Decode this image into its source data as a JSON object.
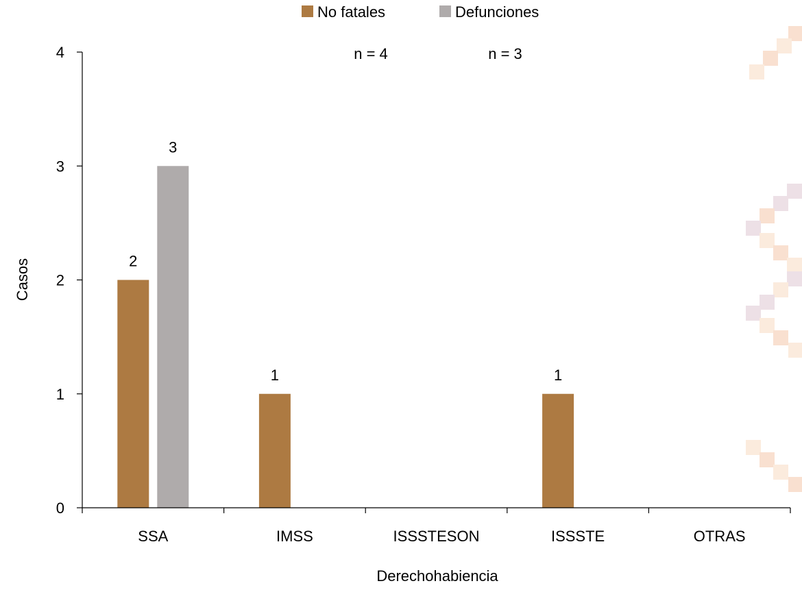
{
  "chart_data": {
    "type": "bar",
    "categories": [
      "SSA",
      "IMSS",
      "ISSSTESON",
      "ISSSTE",
      "OTRAS"
    ],
    "series": [
      {
        "name": "No fatales",
        "color": "#AD7A42",
        "values": [
          2,
          1,
          0,
          1,
          0
        ]
      },
      {
        "name": "Defunciones",
        "color": "#AFABAB",
        "values": [
          3,
          0,
          0,
          0,
          0
        ]
      }
    ],
    "data_labels": [
      [
        "2",
        "1",
        "",
        "1",
        ""
      ],
      [
        "3",
        "",
        "",
        "",
        ""
      ]
    ],
    "xlabel": "Derechohabiencia",
    "ylabel": "Casos",
    "ylim": [
      0,
      4
    ],
    "yticks": [
      "0",
      "1",
      "2",
      "3",
      "4"
    ],
    "annotations": [
      "n = 4",
      "n = 3"
    ],
    "legend_position": "top-center",
    "grid": false
  },
  "background": {
    "watermark_colors": [
      "#F9E0D0",
      "#EDE0E6",
      "#FBEBDD"
    ]
  }
}
